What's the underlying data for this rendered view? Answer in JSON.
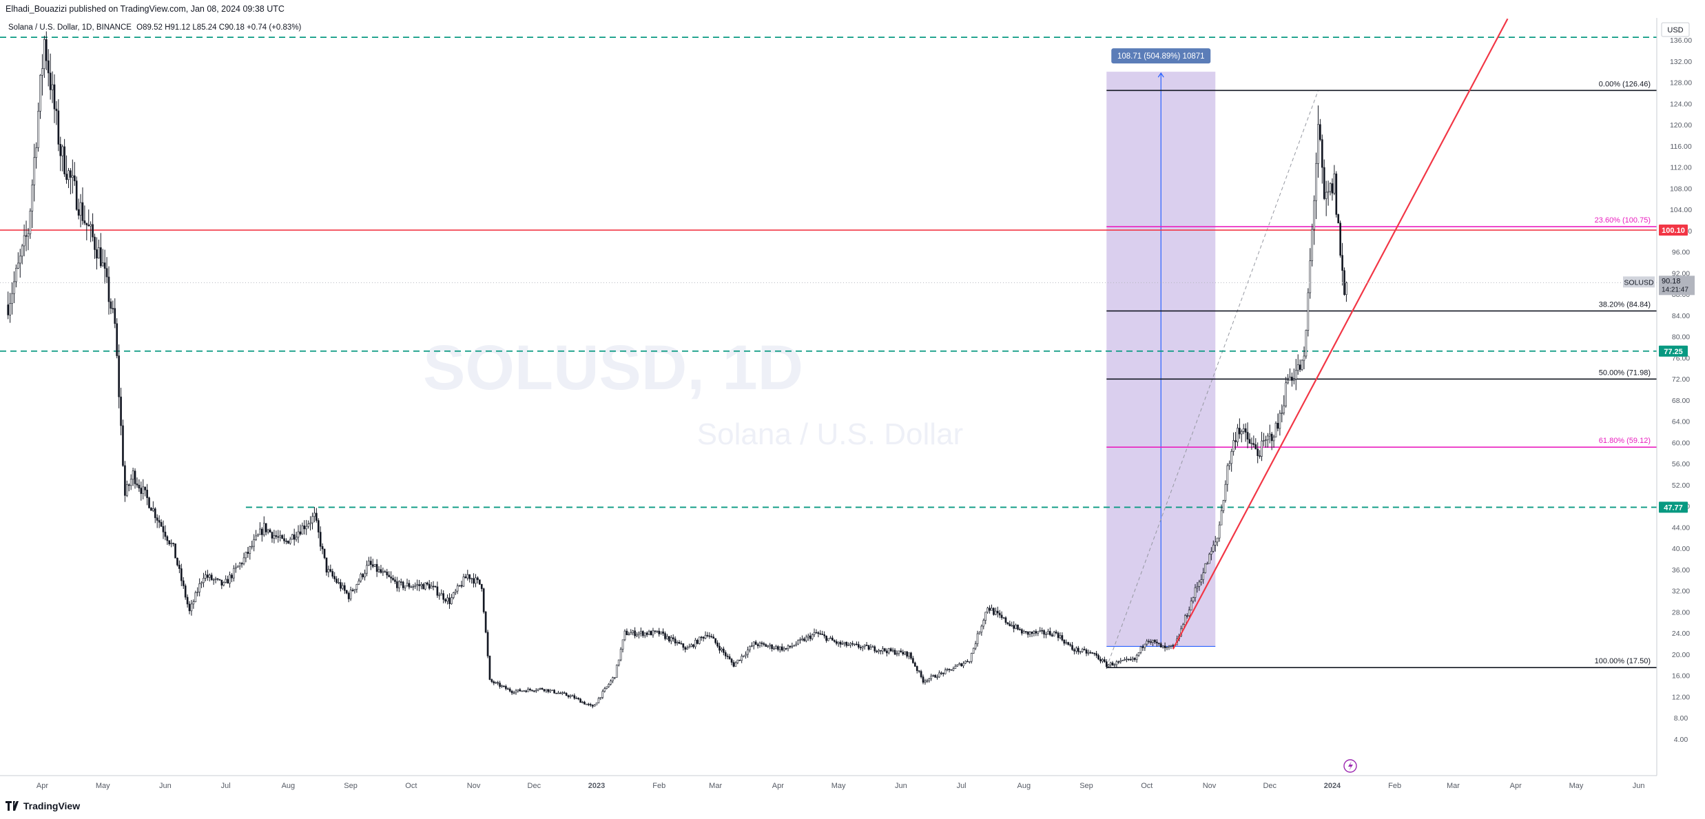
{
  "header": {
    "published_line": "Elhadi_Bouazizi published on TradingView.com, Jan 08, 2024 09:38 UTC",
    "symbol_line": "Solana / U.S. Dollar, 1D, BINANCE",
    "ohlc": {
      "o": "O89.52",
      "h": "H91.12",
      "l": "L85.24",
      "c": "C90.18",
      "chg": "+0.74 (+0.83%)"
    }
  },
  "watermark": {
    "title": "SOLUSD, 1D",
    "subtitle": "Solana / U.S. Dollar"
  },
  "footer": {
    "brand": "TradingView"
  },
  "chart_data": {
    "type": "candlestick",
    "currency": "USD",
    "ylim": [
      0,
      140
    ],
    "y_ticks": [
      4,
      8,
      12,
      16,
      20,
      24,
      28,
      32,
      36,
      40,
      44,
      48,
      52,
      56,
      60,
      64,
      68,
      72,
      76,
      80,
      84,
      88,
      92,
      96,
      100,
      104,
      108,
      112,
      116,
      120,
      124,
      128,
      132,
      136
    ],
    "x_ticks": [
      "Apr",
      "May",
      "Jun",
      "Jul",
      "Aug",
      "Sep",
      "Oct",
      "Nov",
      "Dec",
      "2023",
      "Feb",
      "Mar",
      "Apr",
      "May",
      "Jun",
      "Jul",
      "Aug",
      "Sep",
      "Oct",
      "Nov",
      "Dec",
      "2024",
      "Feb",
      "Mar",
      "Apr",
      "May",
      "Jun"
    ],
    "price_path": [
      [
        "2022-03-15",
        86
      ],
      [
        "2022-03-25",
        100
      ],
      [
        "2022-04-02",
        136
      ],
      [
        "2022-04-10",
        115
      ],
      [
        "2022-04-22",
        102
      ],
      [
        "2022-04-30",
        95
      ],
      [
        "2022-05-07",
        82
      ],
      [
        "2022-05-12",
        50
      ],
      [
        "2022-05-16",
        54
      ],
      [
        "2022-05-25",
        48
      ],
      [
        "2022-06-05",
        40
      ],
      [
        "2022-06-13",
        28
      ],
      [
        "2022-06-20",
        35
      ],
      [
        "2022-06-30",
        33
      ],
      [
        "2022-07-10",
        38
      ],
      [
        "2022-07-20",
        44
      ],
      [
        "2022-07-30",
        41
      ],
      [
        "2022-08-05",
        43
      ],
      [
        "2022-08-14",
        46
      ],
      [
        "2022-08-20",
        36
      ],
      [
        "2022-08-31",
        31
      ],
      [
        "2022-09-10",
        37
      ],
      [
        "2022-09-25",
        33
      ],
      [
        "2022-10-10",
        33
      ],
      [
        "2022-10-20",
        30
      ],
      [
        "2022-10-29",
        35
      ],
      [
        "2022-11-05",
        33
      ],
      [
        "2022-11-09",
        15
      ],
      [
        "2022-11-20",
        13
      ],
      [
        "2022-12-05",
        13.5
      ],
      [
        "2022-12-20",
        12
      ],
      [
        "2022-12-30",
        10
      ],
      [
        "2023-01-10",
        16
      ],
      [
        "2023-01-15",
        24
      ],
      [
        "2023-02-01",
        24
      ],
      [
        "2023-02-15",
        21
      ],
      [
        "2023-02-25",
        24
      ],
      [
        "2023-03-10",
        18
      ],
      [
        "2023-03-20",
        22
      ],
      [
        "2023-04-05",
        21
      ],
      [
        "2023-04-20",
        24
      ],
      [
        "2023-05-01",
        22
      ],
      [
        "2023-05-20",
        21
      ],
      [
        "2023-06-05",
        20
      ],
      [
        "2023-06-12",
        15
      ],
      [
        "2023-06-25",
        17
      ],
      [
        "2023-07-05",
        19
      ],
      [
        "2023-07-14",
        29
      ],
      [
        "2023-07-20",
        27
      ],
      [
        "2023-08-01",
        24
      ],
      [
        "2023-08-17",
        24
      ],
      [
        "2023-08-25",
        21
      ],
      [
        "2023-09-05",
        20
      ],
      [
        "2023-09-11",
        18
      ],
      [
        "2023-09-25",
        19
      ],
      [
        "2023-10-01",
        23
      ],
      [
        "2023-10-10",
        21
      ],
      [
        "2023-10-15",
        21.5
      ],
      [
        "2023-10-25",
        32
      ],
      [
        "2023-11-05",
        42
      ],
      [
        "2023-11-10",
        55
      ],
      [
        "2023-11-15",
        63
      ],
      [
        "2023-11-25",
        58
      ],
      [
        "2023-12-05",
        63
      ],
      [
        "2023-12-10",
        72
      ],
      [
        "2023-12-18",
        75
      ],
      [
        "2023-12-22",
        100
      ],
      [
        "2023-12-25",
        120
      ],
      [
        "2023-12-28",
        105
      ],
      [
        "2024-01-02",
        109
      ],
      [
        "2024-01-05",
        96
      ],
      [
        "2024-01-07",
        88
      ],
      [
        "2024-01-08",
        90.18
      ]
    ],
    "last_price": {
      "label": "SOLUSD",
      "value": "90.18",
      "countdown": "14:21:47"
    },
    "price_labels": [
      {
        "value": 100.1,
        "text": "100.10",
        "color": "#f23645"
      },
      {
        "value": 77.25,
        "text": "77.25",
        "color": "#089981"
      },
      {
        "value": 47.77,
        "text": "47.77",
        "color": "#089981"
      }
    ],
    "horizontal_lines": [
      {
        "value": 136.5,
        "style": "dashed",
        "color": "#089981"
      },
      {
        "value": 100.1,
        "style": "solid",
        "color": "#f23645"
      },
      {
        "value": 77.25,
        "style": "dashed",
        "color": "#089981"
      },
      {
        "value": 47.77,
        "style": "dashed",
        "color": "#089981",
        "from": "2022-07-11"
      }
    ],
    "fibonacci": {
      "from": "2023-09-11",
      "levels": [
        {
          "label": "0.00% (126.46)",
          "value": 126.46,
          "color": "#131722"
        },
        {
          "label": "23.60% (100.75)",
          "value": 100.75,
          "color": "#e91ebf"
        },
        {
          "label": "38.20% (84.84)",
          "value": 84.84,
          "color": "#131722"
        },
        {
          "label": "50.00% (71.98)",
          "value": 71.98,
          "color": "#131722"
        },
        {
          "label": "61.80% (59.12)",
          "value": 59.12,
          "color": "#e91ebf"
        },
        {
          "label": "100.00% (17.50)",
          "value": 17.5,
          "color": "#131722"
        }
      ]
    },
    "measure_box": {
      "from": "2023-09-11",
      "to": "2023-11-04",
      "low": 21.5,
      "high": 130,
      "label": "108.71 (504.89%) 10871"
    },
    "trendline": {
      "from": [
        "2023-10-14",
        21
      ],
      "to": [
        "2024-03-28",
        140
      ],
      "color": "#f23645"
    },
    "fib_diagonal": {
      "from": [
        "2023-09-11",
        17.5
      ],
      "to": [
        "2023-12-25",
        126.46
      ]
    },
    "colors": {
      "candle": "#131722",
      "fib_pink": "#e91ebf",
      "green": "#089981",
      "red": "#f23645",
      "measure": "#9575cd",
      "axis_text": "#555a64"
    }
  }
}
